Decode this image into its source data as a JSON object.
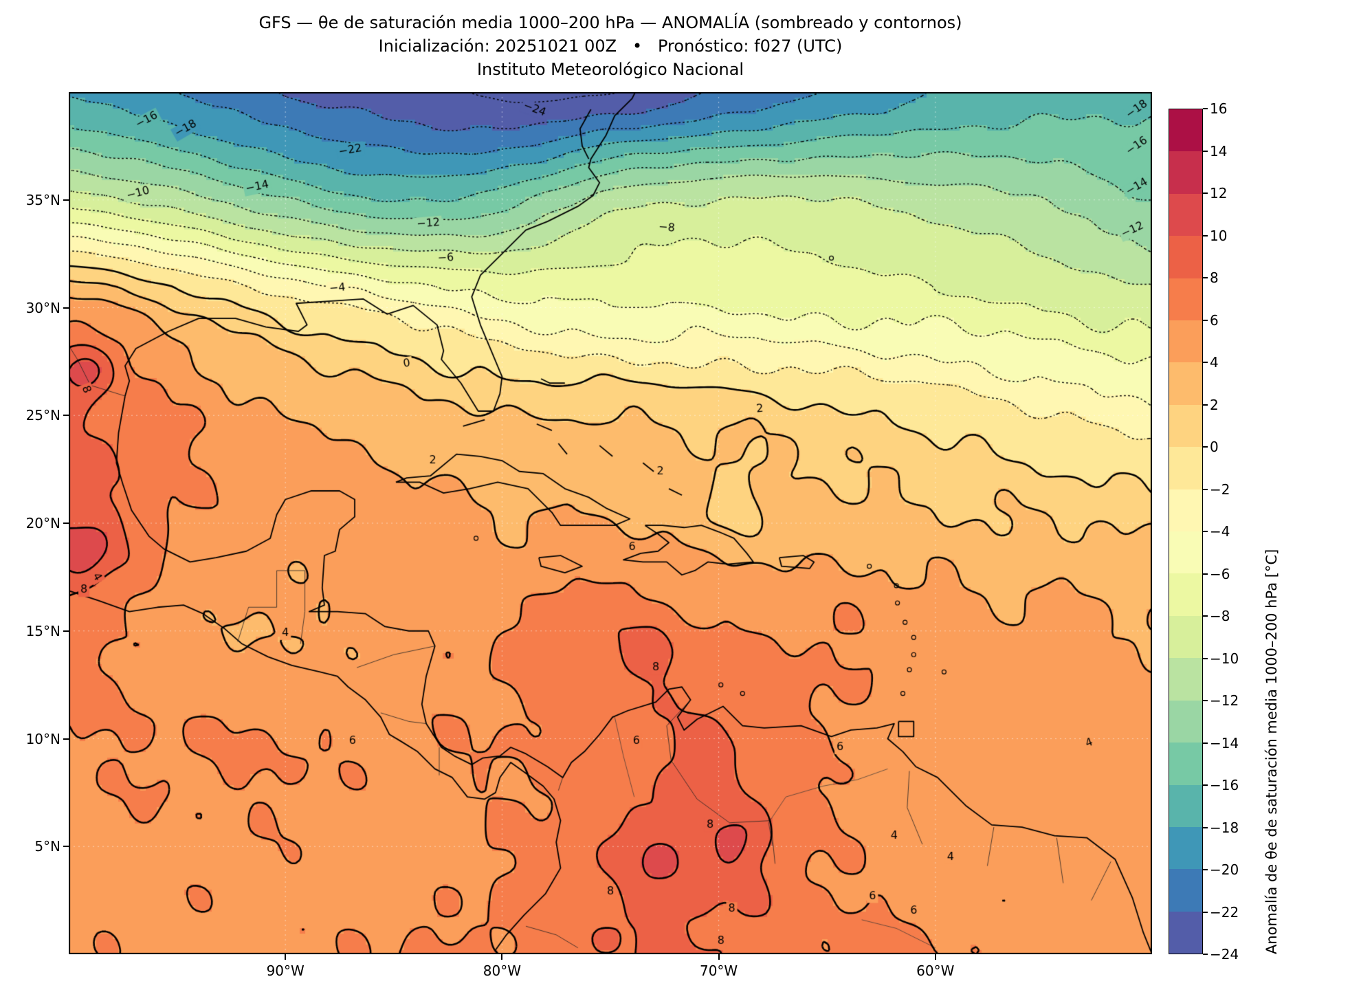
{
  "header": {
    "title": "GFS — θe de saturación media 1000–200 hPa — ANOMALÍA (sombreado y contornos)",
    "subtitle": "Inicialización: 20251021 00Z   •   Pronóstico: f027 (UTC)",
    "institution": "Instituto Meteorológico Nacional"
  },
  "chart_data": {
    "type": "heatmap",
    "title": "GFS — θe de saturación media 1000–200 hPa — ANOMALÍA (sombreado y contornos)",
    "init_label": "Inicialización: 20251021 00Z",
    "forecast_label": "Pronóstico: f027 (UTC)",
    "source": "Instituto Meteorológico Nacional",
    "units": "°C",
    "extent": {
      "lon_min": -100,
      "lon_max": -50,
      "lat_min": 0,
      "lat_max": 40
    },
    "xticks": [
      {
        "lon": -90,
        "label": "90°W"
      },
      {
        "lon": -80,
        "label": "80°W"
      },
      {
        "lon": -70,
        "label": "70°W"
      },
      {
        "lon": -60,
        "label": "60°W"
      }
    ],
    "yticks": [
      {
        "lat": 35,
        "label": "35°N"
      },
      {
        "lat": 30,
        "label": "30°N"
      },
      {
        "lat": 25,
        "label": "25°N"
      },
      {
        "lat": 20,
        "label": "20°N"
      },
      {
        "lat": 15,
        "label": "15°N"
      },
      {
        "lat": 10,
        "label": "10°N"
      },
      {
        "lat": 5,
        "label": "5°N"
      }
    ],
    "grid": {
      "lons": [
        -100,
        -95,
        -90,
        -85,
        -80,
        -75,
        -70,
        -65,
        -60,
        -55,
        -50
      ],
      "lats": [
        0,
        5,
        10,
        15,
        20,
        25,
        30,
        35,
        40
      ],
      "values": [
        [
          5.5,
          5.5,
          5.5,
          6.0,
          6.5,
          8.0,
          8.0,
          6.5,
          6.0,
          5.5,
          5.0
        ],
        [
          5.5,
          5.5,
          5.5,
          5.0,
          6.0,
          7.5,
          8.5,
          6.0,
          5.0,
          5.0,
          5.0
        ],
        [
          6.0,
          6.0,
          6.0,
          5.5,
          6.0,
          7.0,
          8.0,
          6.0,
          5.0,
          5.0,
          4.5
        ],
        [
          7.0,
          5.0,
          4.0,
          5.0,
          6.0,
          7.5,
          6.0,
          6.0,
          5.0,
          4.5,
          4.0
        ],
        [
          9.0,
          6.0,
          5.0,
          5.0,
          4.0,
          4.0,
          3.0,
          3.0,
          2.5,
          2.0,
          1.5
        ],
        [
          8.0,
          6.0,
          4.0,
          3.0,
          2.0,
          2.0,
          1.5,
          0.5,
          -0.5,
          -2.0,
          -3.0
        ],
        [
          5.0,
          2.0,
          -1.0,
          -3.0,
          -5.0,
          -6.0,
          -6.0,
          -6.5,
          -7.0,
          -8.0,
          -9.0
        ],
        [
          -9.0,
          -11.0,
          -14.0,
          -16.0,
          -15.0,
          -11.0,
          -10.0,
          -10.0,
          -11.0,
          -12.0,
          -14.0
        ],
        [
          -18.0,
          -20.0,
          -22.0,
          -23.0,
          -24.5,
          -24.0,
          -22.0,
          -20.0,
          -18.0,
          -17.0,
          -16.5
        ]
      ]
    },
    "local_features": [
      {
        "lon": -99.2,
        "lat": 27.2,
        "amp": 4.0,
        "r": 1.2
      },
      {
        "lon": -99.3,
        "lat": 18.6,
        "amp": 3.0,
        "r": 1.5
      },
      {
        "lon": -73.0,
        "lat": 14.0,
        "amp": 2.2,
        "r": 1.1
      },
      {
        "lon": -70.6,
        "lat": 9.6,
        "amp": 1.6,
        "r": 1.0
      },
      {
        "lon": -72.8,
        "lat": 4.6,
        "amp": 2.2,
        "r": 1.7
      },
      {
        "lon": -69.2,
        "lat": 5.2,
        "amp": 2.0,
        "r": 1.5
      },
      {
        "lon": -69.3,
        "lat": 20.7,
        "amp": -1.6,
        "r": 1.5
      },
      {
        "lon": -84.0,
        "lat": 23.3,
        "amp": -1.4,
        "r": 1.5
      }
    ],
    "contour_interval": 2,
    "contour_negative_style": "dotted",
    "contour_positive_style": "solid",
    "contour_labels": [
      {
        "v": -16,
        "lon": -96.4,
        "lat": 38.7,
        "rot": -28
      },
      {
        "v": -18,
        "lon": -94.6,
        "lat": 38.3,
        "rot": -30
      },
      {
        "v": -22,
        "lon": -87.0,
        "lat": 37.3,
        "rot": -10
      },
      {
        "v": -24,
        "lon": -78.5,
        "lat": 39.2,
        "rot": 20
      },
      {
        "v": -14,
        "lon": -91.3,
        "lat": 35.6,
        "rot": -12
      },
      {
        "v": -10,
        "lon": -96.8,
        "lat": 35.3,
        "rot": -15
      },
      {
        "v": -12,
        "lon": -83.4,
        "lat": 33.9,
        "rot": -5
      },
      {
        "v": -8,
        "lon": -72.4,
        "lat": 33.7,
        "rot": 5
      },
      {
        "v": -6,
        "lon": -82.6,
        "lat": 32.3,
        "rot": -3
      },
      {
        "v": -4,
        "lon": -87.6,
        "lat": 30.9,
        "rot": -5
      },
      {
        "v": -18,
        "lon": -50.7,
        "lat": 39.2,
        "rot": -35
      },
      {
        "v": -16,
        "lon": -50.7,
        "lat": 37.5,
        "rot": -35
      },
      {
        "v": -14,
        "lon": -50.7,
        "lat": 35.6,
        "rot": -30
      },
      {
        "v": -12,
        "lon": -50.9,
        "lat": 33.6,
        "rot": -25
      },
      {
        "v": 0,
        "lon": -84.4,
        "lat": 27.4,
        "rot": -8
      },
      {
        "v": 2,
        "lon": -68.1,
        "lat": 25.3,
        "rot": -5
      },
      {
        "v": 2,
        "lon": -83.2,
        "lat": 22.9,
        "rot": 0
      },
      {
        "v": 2,
        "lon": -72.7,
        "lat": 22.4,
        "rot": 0
      },
      {
        "v": 4,
        "lon": -90.0,
        "lat": 14.9,
        "rot": 0
      },
      {
        "v": 4,
        "lon": -98.7,
        "lat": 17.5,
        "rot": 60
      },
      {
        "v": 8,
        "lon": -99.2,
        "lat": 26.2,
        "rot": 70
      },
      {
        "v": 8,
        "lon": -99.3,
        "lat": 16.9,
        "rot": 0
      },
      {
        "v": 6,
        "lon": -74.0,
        "lat": 18.9,
        "rot": 0
      },
      {
        "v": 8,
        "lon": -72.9,
        "lat": 13.3,
        "rot": 0
      },
      {
        "v": 6,
        "lon": -86.9,
        "lat": 9.9,
        "rot": 0
      },
      {
        "v": 6,
        "lon": -73.8,
        "lat": 9.9,
        "rot": 0
      },
      {
        "v": 6,
        "lon": -64.4,
        "lat": 9.6,
        "rot": 0
      },
      {
        "v": 4,
        "lon": -52.9,
        "lat": 9.8,
        "rot": -20
      },
      {
        "v": 8,
        "lon": -70.4,
        "lat": 6.0,
        "rot": 0
      },
      {
        "v": 8,
        "lon": -75.0,
        "lat": 2.9,
        "rot": 0
      },
      {
        "v": 4,
        "lon": -61.9,
        "lat": 5.5,
        "rot": 0
      },
      {
        "v": 4,
        "lon": -59.3,
        "lat": 4.5,
        "rot": 0
      },
      {
        "v": 6,
        "lon": -62.9,
        "lat": 2.7,
        "rot": 0
      },
      {
        "v": 8,
        "lon": -69.4,
        "lat": 2.1,
        "rot": 0
      },
      {
        "v": 6,
        "lon": -61.0,
        "lat": 2.0,
        "rot": 0
      },
      {
        "v": 8,
        "lon": -69.9,
        "lat": 0.6,
        "rot": 0
      }
    ],
    "colorbar": {
      "label": "Anomalía de θe de saturación media 1000–200 hPa [°C]",
      "min": -24,
      "max": 16,
      "step": 2,
      "ticks": [
        16,
        14,
        12,
        10,
        8,
        6,
        4,
        2,
        0,
        -2,
        -4,
        -6,
        -8,
        -10,
        -12,
        -14,
        -16,
        -18,
        -20,
        -22,
        -24
      ],
      "colors": [
        "#535da9",
        "#3d7ab6",
        "#3f97b7",
        "#59b4ab",
        "#77c9a5",
        "#9ad6a4",
        "#bae3a1",
        "#d7ef9b",
        "#ecf8a2",
        "#f9fcb5",
        "#fff7b2",
        "#fee898",
        "#fed380",
        "#fdbb6c",
        "#fb9e5a",
        "#f67d4b",
        "#ec6146",
        "#dd4a4c",
        "#c72f4c",
        "#ac1045"
      ]
    }
  }
}
